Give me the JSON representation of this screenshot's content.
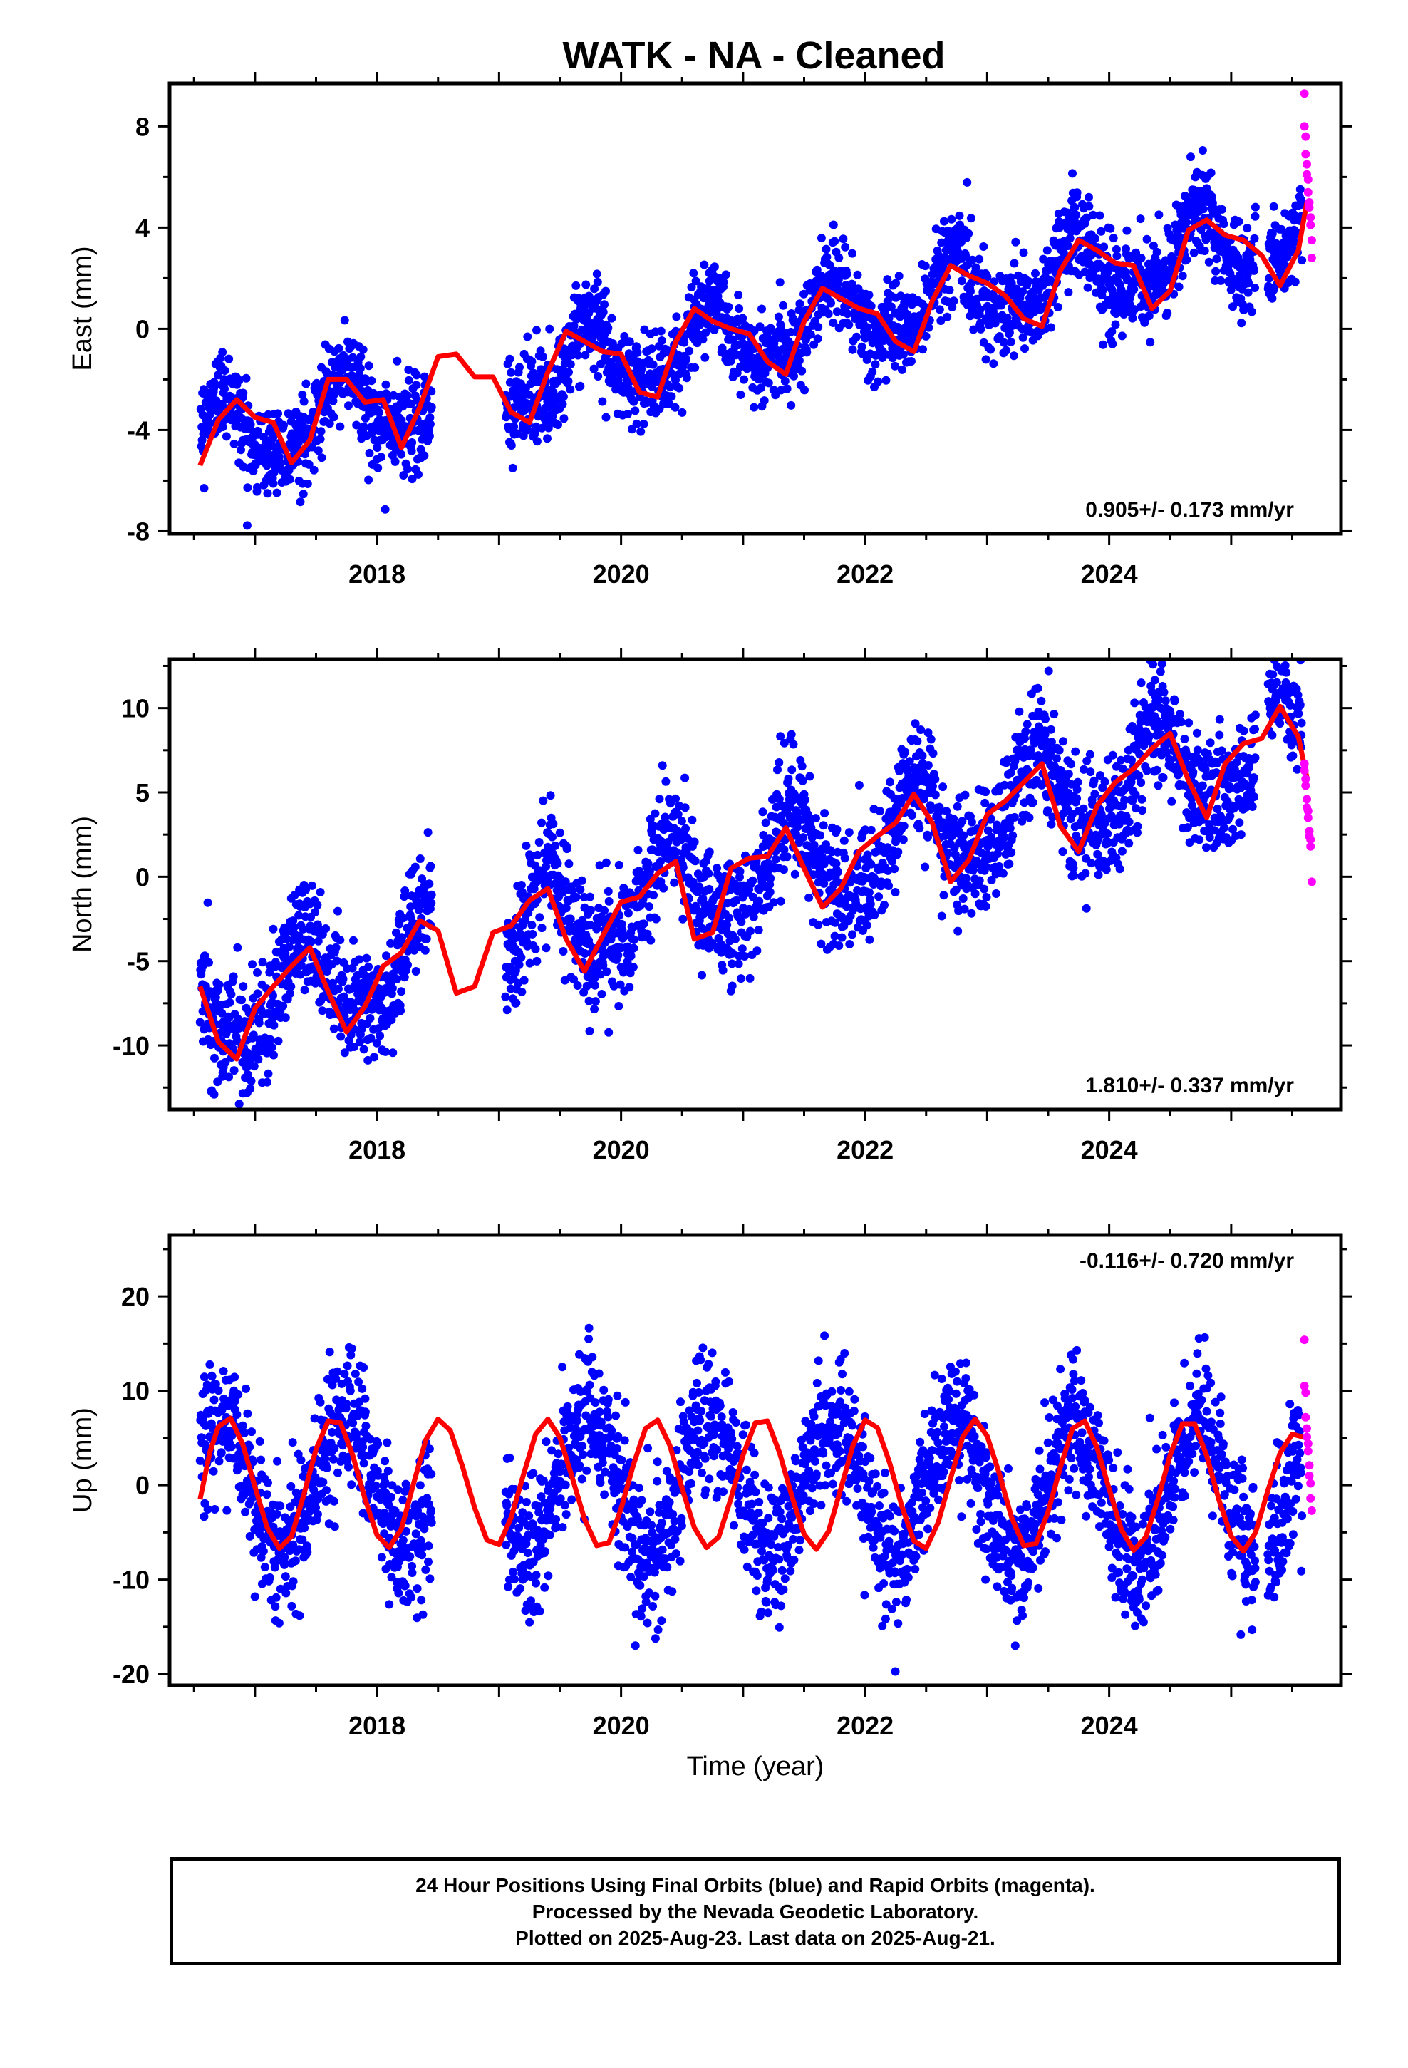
{
  "title": "WATK  - NA - Cleaned",
  "colors": {
    "final_orbits": "#0000ff",
    "rapid_orbits": "#ff00ff",
    "model": "#ff0000"
  },
  "chart_data": [
    {
      "type": "scatter",
      "ylabel": "East (mm)",
      "xlabel": "",
      "xlim": [
        2016.3,
        2025.9
      ],
      "ylim": [
        -8.1,
        9.7
      ],
      "yticks": [
        -8,
        -4,
        0,
        4,
        8
      ],
      "xticks": [
        2018,
        2020,
        2022,
        2024
      ],
      "rate": "0.905+/- 0.173 mm/yr",
      "rate_position": "bottom-right",
      "trend": {
        "mean_at_2016_5": -4.4,
        "rate": 0.905,
        "annual_amp": 1.3,
        "annual_phase_peak": 0.72,
        "semi_amp": 0.45,
        "scatter": 0.9
      },
      "model_curve": {
        "x": [
          2016.55,
          2016.7,
          2016.85,
          2017.0,
          2017.15,
          2017.3,
          2017.45,
          2017.6,
          2017.75,
          2017.9,
          2018.05,
          2018.2,
          2018.35,
          2018.5,
          2018.65,
          2018.8,
          2018.95,
          2019.1,
          2019.25,
          2019.4,
          2019.55,
          2019.7,
          2019.85,
          2020.0,
          2020.15,
          2020.3,
          2020.45,
          2020.6,
          2020.75,
          2020.9,
          2021.05,
          2021.2,
          2021.35,
          2021.5,
          2021.65,
          2021.8,
          2021.95,
          2022.1,
          2022.25,
          2022.4,
          2022.55,
          2022.7,
          2022.85,
          2023.0,
          2023.15,
          2023.3,
          2023.45,
          2023.6,
          2023.75,
          2023.9,
          2024.05,
          2024.2,
          2024.35,
          2024.5,
          2024.65,
          2024.8,
          2024.95,
          2025.1,
          2025.25,
          2025.4,
          2025.55,
          2025.62
        ],
        "y": [
          -5.4,
          -3.6,
          -2.8,
          -3.5,
          -3.7,
          -5.3,
          -4.4,
          -2.0,
          -2.0,
          -2.9,
          -2.8,
          -4.7,
          -3.1,
          -1.1,
          -1.0,
          -1.9,
          -1.9,
          -3.3,
          -3.7,
          -1.7,
          -0.1,
          -0.5,
          -0.9,
          -1.0,
          -2.5,
          -2.7,
          -0.5,
          0.8,
          0.3,
          0.0,
          -0.2,
          -1.3,
          -1.8,
          0.3,
          1.6,
          1.2,
          0.8,
          0.6,
          -0.5,
          -0.9,
          1.1,
          2.5,
          2.1,
          1.8,
          1.3,
          0.4,
          0.1,
          2.3,
          3.5,
          3.1,
          2.6,
          2.5,
          0.8,
          1.5,
          3.9,
          4.3,
          3.7,
          3.5,
          2.9,
          1.7,
          3.1,
          5.0
        ]
      },
      "rapid_points": {
        "x": [
          2025.6,
          2025.6,
          2025.61,
          2025.61,
          2025.62,
          2025.62,
          2025.63,
          2025.63,
          2025.64,
          2025.64,
          2025.65,
          2025.65,
          2025.66,
          2025.66
        ],
        "y": [
          9.3,
          8.0,
          7.6,
          6.9,
          6.5,
          6.1,
          5.9,
          5.4,
          5.0,
          4.8,
          4.4,
          4.1,
          3.5,
          2.8
        ]
      }
    },
    {
      "type": "scatter",
      "ylabel": "North (mm)",
      "xlabel": "",
      "xlim": [
        2016.3,
        2025.9
      ],
      "ylim": [
        -13.8,
        12.9
      ],
      "yticks": [
        -10,
        -5,
        0,
        5,
        10
      ],
      "xticks": [
        2018,
        2020,
        2022,
        2024
      ],
      "rate": "1.810+/- 0.337 mm/yr",
      "rate_position": "bottom-right",
      "trend": {
        "mean_at_2016_5": -8.2,
        "rate": 1.81,
        "annual_amp": 2.8,
        "annual_phase_peak": 0.4,
        "semi_amp": 0.6,
        "scatter": 1.8
      },
      "model_curve": {
        "x": [
          2016.55,
          2016.7,
          2016.85,
          2017.0,
          2017.15,
          2017.3,
          2017.45,
          2017.6,
          2017.75,
          2017.9,
          2018.05,
          2018.2,
          2018.35,
          2018.5,
          2018.65,
          2018.8,
          2018.95,
          2019.1,
          2019.25,
          2019.4,
          2019.55,
          2019.7,
          2019.85,
          2020.0,
          2020.15,
          2020.3,
          2020.45,
          2020.6,
          2020.75,
          2020.9,
          2021.05,
          2021.2,
          2021.35,
          2021.5,
          2021.65,
          2021.8,
          2021.95,
          2022.1,
          2022.25,
          2022.4,
          2022.55,
          2022.7,
          2022.85,
          2023.0,
          2023.15,
          2023.3,
          2023.45,
          2023.6,
          2023.75,
          2023.9,
          2024.05,
          2024.2,
          2024.35,
          2024.5,
          2024.65,
          2024.8,
          2024.95,
          2025.1,
          2025.25,
          2025.4,
          2025.55,
          2025.62
        ],
        "y": [
          -6.5,
          -9.8,
          -10.8,
          -7.8,
          -6.5,
          -5.3,
          -4.2,
          -6.8,
          -9.2,
          -7.7,
          -5.3,
          -4.5,
          -2.6,
          -3.2,
          -6.9,
          -6.5,
          -3.3,
          -2.9,
          -1.4,
          -0.7,
          -3.7,
          -5.6,
          -3.5,
          -1.5,
          -1.2,
          0.2,
          0.9,
          -3.7,
          -3.3,
          0.5,
          1.1,
          1.2,
          2.9,
          0.5,
          -1.8,
          -0.7,
          1.5,
          2.4,
          3.2,
          4.9,
          3.2,
          -0.3,
          1.0,
          3.7,
          4.5,
          5.6,
          6.7,
          3.0,
          1.5,
          4.2,
          5.6,
          6.4,
          7.6,
          8.5,
          5.7,
          3.5,
          6.7,
          7.9,
          8.2,
          10.1,
          8.3,
          5.9
        ]
      },
      "rapid_points": {
        "x": [
          2025.6,
          2025.6,
          2025.61,
          2025.61,
          2025.62,
          2025.62,
          2025.63,
          2025.63,
          2025.64,
          2025.64,
          2025.65,
          2025.65,
          2025.66
        ],
        "y": [
          6.7,
          6.3,
          5.8,
          5.4,
          4.6,
          4.1,
          3.9,
          3.5,
          2.7,
          2.4,
          2.2,
          1.8,
          -0.3
        ]
      }
    },
    {
      "type": "scatter",
      "ylabel": "Up (mm)",
      "xlabel": "Time (year)",
      "xlim": [
        2016.3,
        2025.9
      ],
      "ylim": [
        -21.2,
        26.5
      ],
      "yticks": [
        -20,
        -10,
        0,
        10,
        20
      ],
      "xticks": [
        2018,
        2020,
        2022,
        2024
      ],
      "rate": "-0.116+/- 0.720 mm/yr",
      "rate_position": "top-right",
      "trend": {
        "mean_at_2016_5": 0.3,
        "rate": -0.116,
        "annual_amp": 7.2,
        "annual_phase_peak": 0.73,
        "semi_amp": 0.0,
        "scatter": 3.6
      },
      "model_curve": {
        "x": [
          2016.55,
          2016.63,
          2016.7,
          2016.8,
          2016.9,
          2017.0,
          2017.1,
          2017.2,
          2017.3,
          2017.4,
          2017.5,
          2017.6,
          2017.7,
          2017.8,
          2017.9,
          2018.0,
          2018.1,
          2018.2,
          2018.3,
          2018.4,
          2018.5,
          2018.6,
          2018.7,
          2018.8,
          2018.9,
          2019.0,
          2019.1,
          2019.2,
          2019.3,
          2019.4,
          2019.5,
          2019.6,
          2019.7,
          2019.8,
          2019.9,
          2020.0,
          2020.1,
          2020.2,
          2020.3,
          2020.4,
          2020.5,
          2020.6,
          2020.7,
          2020.8,
          2020.9,
          2021.0,
          2021.1,
          2021.2,
          2021.3,
          2021.4,
          2021.5,
          2021.6,
          2021.7,
          2021.8,
          2021.9,
          2022.0,
          2022.1,
          2022.2,
          2022.3,
          2022.4,
          2022.5,
          2022.6,
          2022.7,
          2022.8,
          2022.9,
          2023.0,
          2023.1,
          2023.2,
          2023.3,
          2023.4,
          2023.5,
          2023.6,
          2023.7,
          2023.8,
          2023.9,
          2024.0,
          2024.1,
          2024.2,
          2024.3,
          2024.4,
          2024.5,
          2024.6,
          2024.7,
          2024.8,
          2024.9,
          2025.0,
          2025.1,
          2025.2,
          2025.3,
          2025.4,
          2025.5,
          2025.62
        ],
        "y": [
          -1.5,
          3.5,
          6.2,
          7.1,
          4.3,
          -0.2,
          -4.5,
          -6.7,
          -5.4,
          -1.0,
          3.8,
          6.8,
          6.6,
          3.2,
          -1.4,
          -5.3,
          -6.6,
          -4.6,
          0.2,
          4.8,
          7.0,
          5.8,
          2.0,
          -2.4,
          -5.8,
          -6.3,
          -3.4,
          1.1,
          5.4,
          7.0,
          5.0,
          0.8,
          -3.6,
          -6.4,
          -6.1,
          -2.5,
          2.1,
          6.0,
          6.9,
          4.2,
          -0.3,
          -4.5,
          -6.6,
          -5.5,
          -1.4,
          3.2,
          6.6,
          6.8,
          3.4,
          -1.2,
          -5.2,
          -6.8,
          -4.9,
          -0.4,
          4.2,
          6.9,
          6.1,
          2.4,
          -2.2,
          -5.9,
          -6.7,
          -3.9,
          0.7,
          5.1,
          7.0,
          5.2,
          1.2,
          -3.4,
          -6.4,
          -6.2,
          -2.8,
          1.9,
          6.0,
          6.8,
          4.0,
          -0.4,
          -4.7,
          -6.9,
          -5.5,
          -1.5,
          3.2,
          6.5,
          6.5,
          3.1,
          -1.6,
          -5.4,
          -7.0,
          -5.0,
          -0.6,
          3.4,
          5.4,
          5.0
        ]
      },
      "rapid_points": {
        "x": [
          2025.6,
          2025.6,
          2025.61,
          2025.61,
          2025.62,
          2025.62,
          2025.63,
          2025.63,
          2025.64,
          2025.64,
          2025.65,
          2025.65,
          2025.66
        ],
        "y": [
          15.4,
          10.5,
          9.8,
          7.2,
          6.0,
          5.1,
          4.4,
          3.6,
          2.1,
          1.0,
          0.2,
          -1.4,
          -2.7
        ]
      }
    }
  ],
  "data_gaps": [
    [
      2018.45,
      2019.05
    ],
    [
      2025.2,
      2025.3
    ]
  ],
  "footer": {
    "line1": "24 Hour Positions Using Final Orbits (blue) and Rapid Orbits (magenta).",
    "line2": "Processed by the Nevada Geodetic Laboratory.",
    "line3": "Plotted on 2025-Aug-23. Last data on 2025-Aug-21."
  }
}
